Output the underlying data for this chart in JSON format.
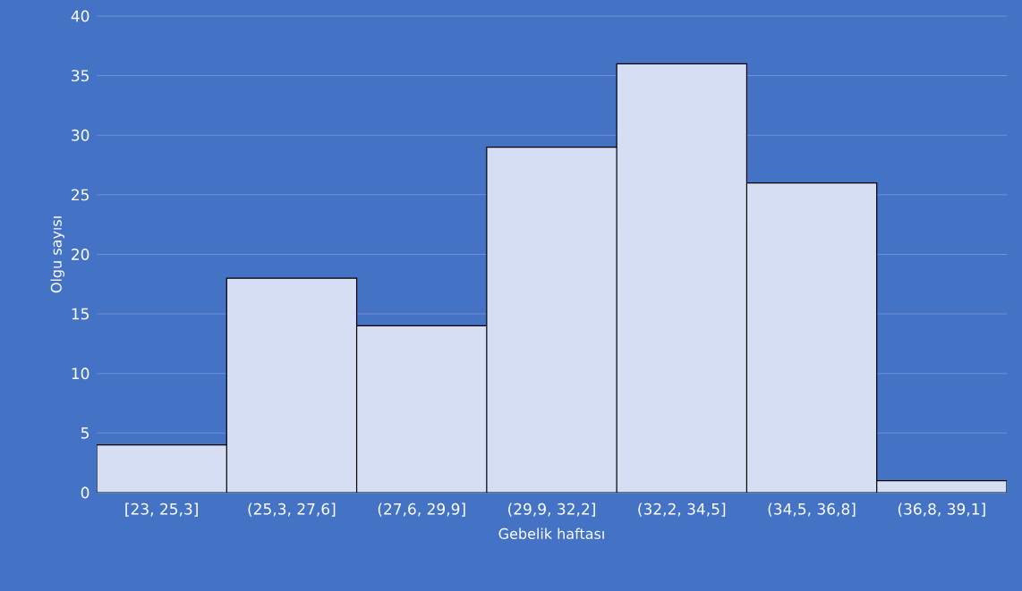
{
  "chart_data": {
    "type": "bar",
    "xlabel": "Gebelik haftası",
    "ylabel": "Olgu sayısı",
    "categories": [
      "[23, 25,3]",
      "(25,3, 27,6]",
      "(27,6, 29,9]",
      "(29,9, 32,2]",
      "(32,2, 34,5]",
      "(34,5, 36,8]",
      "(36,8, 39,1]"
    ],
    "values": [
      4,
      18,
      14,
      29,
      36,
      26,
      1
    ],
    "color": "#d5def2",
    "ylim": [
      0,
      40
    ],
    "yticks": [
      0,
      5,
      10,
      15,
      20,
      25,
      30,
      35,
      40
    ],
    "grid": "y"
  }
}
